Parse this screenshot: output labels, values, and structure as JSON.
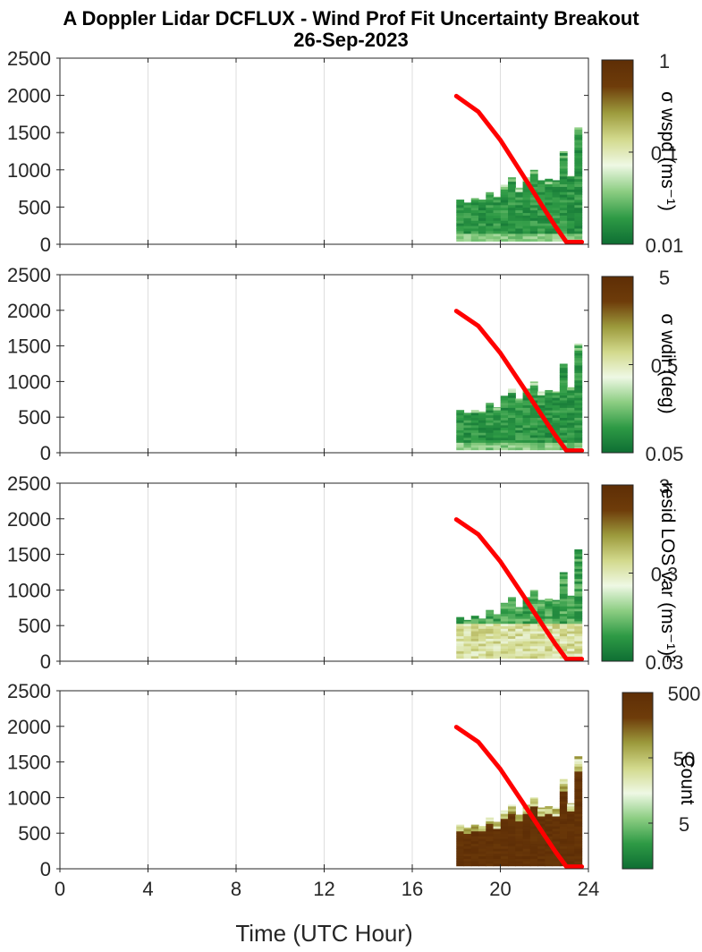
{
  "figure": {
    "title_line1": "A Doppler Lidar DCFLUX - Wind Prof Fit Uncertainty Breakout",
    "title_line2": "26-Sep-2023",
    "xlabel": "Time (UTC Hour)",
    "colors": {
      "red_line": "#ff0000",
      "colormap": [
        "#0e6e33",
        "#2e9a45",
        "#8ccd82",
        "#eef8e4",
        "#d2d98c",
        "#9c9a3c",
        "#6e3c0a",
        "#5e2e06"
      ]
    }
  },
  "chart_data": [
    {
      "type": "heatmap",
      "panel": "wspd",
      "x_ticks": [
        "0",
        "4",
        "8",
        "12",
        "16",
        "20",
        "24"
      ],
      "xlim": [
        0,
        24
      ],
      "y_ticks": [
        "0",
        "500",
        "1000",
        "1500",
        "2000",
        "2500"
      ],
      "ylim": [
        0,
        2500
      ],
      "grid": true,
      "colorbar": {
        "label": "σ wspd (ms⁻¹)",
        "ticks": [
          "1",
          "0.1",
          "0.01"
        ],
        "log_range": [
          0.01,
          1
        ]
      },
      "heatmap_x": [
        18,
        23.7
      ],
      "heatmap_dominant": "low",
      "column_tops": [
        600,
        560,
        620,
        600,
        700,
        640,
        800,
        900,
        760,
        900,
        1000,
        860,
        880,
        860,
        1250,
        920,
        1570
      ],
      "red_line": {
        "x": [
          18.0,
          19.0,
          20.0,
          21.0,
          22.0,
          22.5,
          23.0,
          23.7
        ],
        "y": [
          1990,
          1780,
          1400,
          940,
          470,
          240,
          30,
          30
        ]
      }
    },
    {
      "type": "heatmap",
      "panel": "wdir",
      "x_ticks": [
        "0",
        "4",
        "8",
        "12",
        "16",
        "20",
        "24"
      ],
      "xlim": [
        0,
        24
      ],
      "y_ticks": [
        "0",
        "500",
        "1000",
        "1500",
        "2000",
        "2500"
      ],
      "ylim": [
        0,
        2500
      ],
      "grid": true,
      "colorbar": {
        "label": "σ wdir (deg)",
        "ticks": [
          "5",
          "0.5",
          "0.05"
        ],
        "log_range": [
          0.05,
          5
        ]
      },
      "heatmap_x": [
        18,
        23.7
      ],
      "heatmap_dominant": "low",
      "column_tops": [
        600,
        560,
        600,
        580,
        700,
        640,
        800,
        900,
        760,
        900,
        1000,
        860,
        880,
        860,
        1250,
        920,
        1530
      ],
      "red_line": {
        "x": [
          18.0,
          19.0,
          20.0,
          21.0,
          22.0,
          22.5,
          23.0,
          23.7
        ],
        "y": [
          1990,
          1780,
          1400,
          940,
          470,
          240,
          30,
          30
        ]
      }
    },
    {
      "type": "heatmap",
      "panel": "resid",
      "x_ticks": [
        "0",
        "4",
        "8",
        "12",
        "16",
        "20",
        "24"
      ],
      "xlim": [
        0,
        24
      ],
      "y_ticks": [
        "0",
        "500",
        "1000",
        "1500",
        "2000",
        "2500"
      ],
      "ylim": [
        0,
        2500
      ],
      "grid": true,
      "colorbar": {
        "label": "resid LOS var (ms⁻¹)²",
        "ticks": [
          "3",
          "0.3",
          "0.03"
        ],
        "log_range": [
          0.03,
          3
        ]
      },
      "heatmap_x": [
        18,
        23.7
      ],
      "heatmap_dominant": "mid",
      "column_tops": [
        620,
        580,
        640,
        600,
        720,
        660,
        820,
        900,
        760,
        900,
        1000,
        860,
        880,
        860,
        1250,
        920,
        1570
      ],
      "red_line": {
        "x": [
          18.0,
          19.0,
          20.0,
          21.0,
          22.0,
          22.5,
          23.0,
          23.7
        ],
        "y": [
          1990,
          1780,
          1400,
          940,
          470,
          240,
          30,
          30
        ]
      }
    },
    {
      "type": "heatmap",
      "panel": "count",
      "x_ticks": [
        "0",
        "4",
        "8",
        "12",
        "16",
        "20",
        "24"
      ],
      "xlim": [
        0,
        24
      ],
      "y_ticks": [
        "0",
        "500",
        "1000",
        "1500",
        "2000",
        "2500"
      ],
      "ylim": [
        0,
        2500
      ],
      "grid": true,
      "colorbar": {
        "label": "Count",
        "ticks": [
          "500",
          "50",
          "5"
        ],
        "log_range": [
          1,
          500
        ]
      },
      "heatmap_x": [
        18,
        23.7
      ],
      "heatmap_dominant": "high",
      "column_tops": [
        620,
        580,
        620,
        600,
        720,
        660,
        820,
        900,
        760,
        900,
        1000,
        860,
        880,
        860,
        1260,
        920,
        1580
      ],
      "red_line": {
        "x": [
          18.0,
          19.0,
          20.0,
          21.0,
          22.0,
          22.5,
          23.0,
          23.7
        ],
        "y": [
          1990,
          1780,
          1400,
          940,
          470,
          240,
          30,
          30
        ]
      }
    }
  ]
}
